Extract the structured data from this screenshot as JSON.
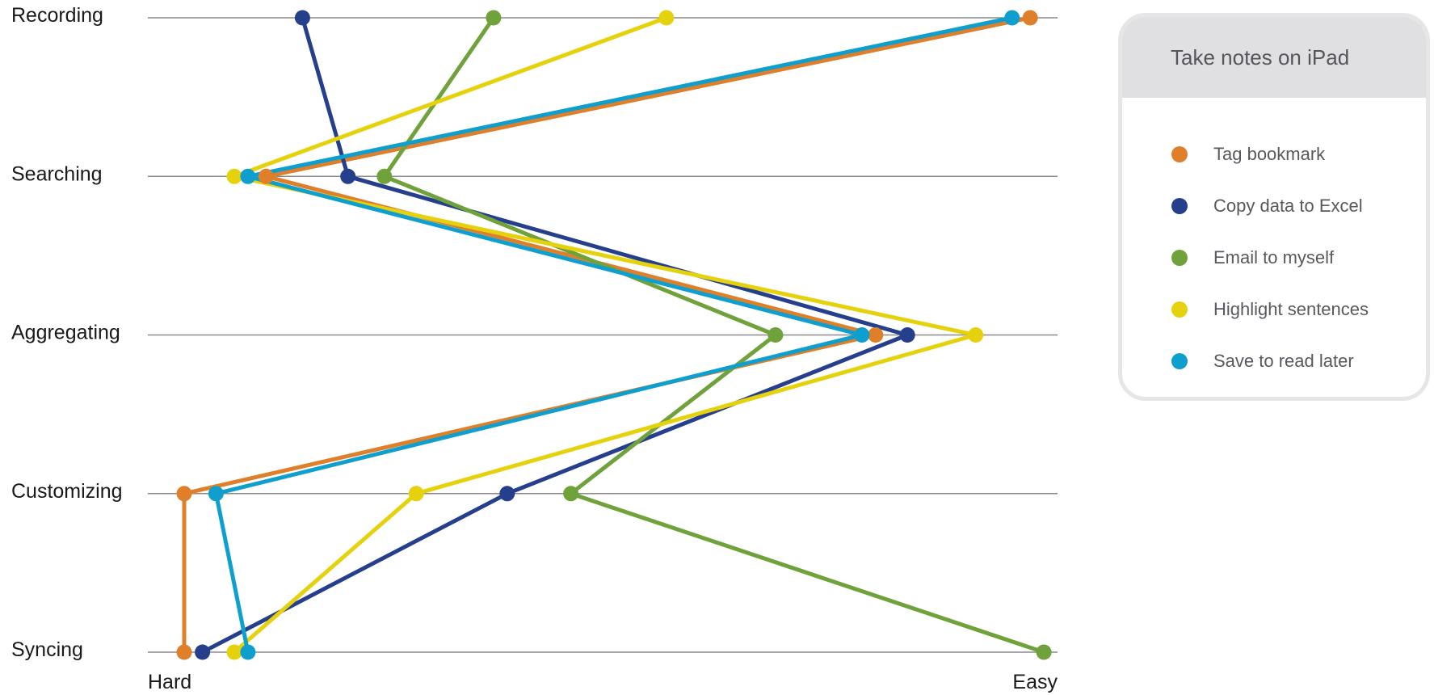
{
  "chart_data": {
    "type": "line",
    "title": "",
    "xlabel": "",
    "ylabel": "",
    "x_axis_labels": {
      "min_label": "Hard",
      "max_label": "Easy"
    },
    "categories": [
      "Recording",
      "Searching",
      "Aggregating",
      "Customizing",
      "Syncing"
    ],
    "xlim": [
      0,
      100
    ],
    "grid": true,
    "legend": {
      "title": "Take notes on iPad",
      "placement": "right"
    },
    "series": [
      {
        "name": "Tag bookmark",
        "color": "#e07f2a",
        "values": [
          97,
          13,
          80,
          4,
          4
        ]
      },
      {
        "name": "Copy data to Excel",
        "color": "#263f8c",
        "values": [
          17,
          22,
          83.5,
          39.5,
          6
        ]
      },
      {
        "name": "Email to myself",
        "color": "#6fa23b",
        "values": [
          38,
          26,
          69,
          46.5,
          98.5
        ]
      },
      {
        "name": "Highlight sentences",
        "color": "#e5d20c",
        "values": [
          57,
          9.5,
          91,
          29.5,
          9.5
        ]
      },
      {
        "name": "Save to read later",
        "color": "#0f9fce",
        "values": [
          95,
          11,
          78.5,
          7.5,
          11
        ]
      }
    ]
  }
}
